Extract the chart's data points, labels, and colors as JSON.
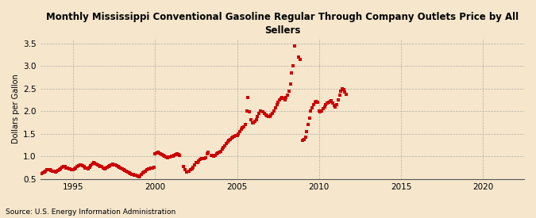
{
  "title": "Monthly Mississippi Conventional Gasoline Regular Through Company Outlets Price by All\nSellers",
  "ylabel": "Dollars per Gallon",
  "source": "Source: U.S. Energy Information Administration",
  "background_color": "#f5e6cc",
  "line_color": "#cc0000",
  "marker": "s",
  "markersize": 2.2,
  "xlim": [
    1993.0,
    2022.5
  ],
  "ylim": [
    0.5,
    3.6
  ],
  "yticks": [
    0.5,
    1.0,
    1.5,
    2.0,
    2.5,
    3.0,
    3.5
  ],
  "xticks": [
    1995,
    2000,
    2005,
    2010,
    2015,
    2020
  ],
  "early_dates": [
    1993.08,
    1993.17,
    1993.25,
    1993.33,
    1993.42,
    1993.5,
    1993.58,
    1993.67,
    1993.75,
    1993.83,
    1993.92,
    1994.0,
    1994.08,
    1994.17,
    1994.25,
    1994.33,
    1994.42,
    1994.5,
    1994.58,
    1994.67,
    1994.75,
    1994.83,
    1994.92,
    1995.0,
    1995.08,
    1995.17,
    1995.25,
    1995.33,
    1995.42,
    1995.5,
    1995.58,
    1995.67,
    1995.75,
    1995.83,
    1995.92,
    1996.0,
    1996.08,
    1996.17,
    1996.25,
    1996.33,
    1996.42,
    1996.5,
    1996.58,
    1996.67,
    1996.75,
    1996.83,
    1996.92,
    1997.0,
    1997.08,
    1997.17,
    1997.25,
    1997.33,
    1997.42,
    1997.5,
    1997.58,
    1997.67,
    1997.75,
    1997.83,
    1997.92,
    1998.0,
    1998.08,
    1998.17,
    1998.25,
    1998.33,
    1998.42,
    1998.5,
    1998.58,
    1998.67,
    1998.75,
    1998.83,
    1998.92,
    1999.0,
    1999.08,
    1999.17,
    1999.25,
    1999.33,
    1999.42,
    1999.5,
    1999.58,
    1999.67,
    1999.75,
    1999.83,
    1999.92
  ],
  "early_values": [
    0.62,
    0.63,
    0.65,
    0.68,
    0.7,
    0.71,
    0.7,
    0.69,
    0.68,
    0.67,
    0.66,
    0.67,
    0.69,
    0.71,
    0.73,
    0.76,
    0.78,
    0.77,
    0.75,
    0.74,
    0.73,
    0.72,
    0.7,
    0.71,
    0.73,
    0.75,
    0.78,
    0.8,
    0.82,
    0.81,
    0.79,
    0.77,
    0.75,
    0.74,
    0.72,
    0.76,
    0.79,
    0.83,
    0.87,
    0.85,
    0.83,
    0.82,
    0.8,
    0.78,
    0.77,
    0.75,
    0.73,
    0.74,
    0.76,
    0.78,
    0.8,
    0.82,
    0.83,
    0.82,
    0.81,
    0.8,
    0.78,
    0.76,
    0.74,
    0.73,
    0.71,
    0.69,
    0.67,
    0.65,
    0.63,
    0.62,
    0.61,
    0.6,
    0.59,
    0.58,
    0.57,
    0.55,
    0.57,
    0.6,
    0.63,
    0.66,
    0.68,
    0.7,
    0.72,
    0.73,
    0.74,
    0.75,
    0.76
  ],
  "scatter_dates": [
    2000.0,
    2000.08,
    2000.17,
    2000.25,
    2000.33,
    2000.42,
    2000.5,
    2000.58,
    2000.67,
    2000.75,
    2000.83,
    2000.92,
    2001.0,
    2001.08,
    2001.17,
    2001.25,
    2001.33,
    2001.42,
    2001.5,
    2001.75,
    2001.83,
    2001.92,
    2002.08,
    2002.17,
    2002.25,
    2002.33,
    2002.42,
    2002.5,
    2002.58,
    2002.67,
    2002.75,
    2002.83,
    2002.92,
    2003.0,
    2003.08,
    2003.17,
    2003.25,
    2003.42,
    2003.5,
    2003.58,
    2003.67,
    2003.75,
    2003.83,
    2003.92,
    2004.0,
    2004.08,
    2004.17,
    2004.25,
    2004.33,
    2004.42,
    2004.5,
    2004.58,
    2004.67,
    2004.75,
    2004.83,
    2004.92,
    2005.0,
    2005.08,
    2005.17,
    2005.25,
    2005.33,
    2005.42,
    2005.5,
    2005.58,
    2005.67,
    2005.75,
    2005.83,
    2005.92,
    2006.0,
    2006.08,
    2006.17,
    2006.25,
    2006.33,
    2006.42,
    2006.58,
    2006.67,
    2006.75,
    2006.83,
    2006.92,
    2007.0,
    2007.08,
    2007.17,
    2007.25,
    2007.33,
    2007.42,
    2007.5,
    2007.58,
    2007.67,
    2007.75,
    2007.83,
    2007.92,
    2008.0,
    2008.08,
    2008.17,
    2008.25,
    2008.33,
    2008.42,
    2008.5,
    2008.75,
    2008.83,
    2009.0,
    2009.08,
    2009.17,
    2009.25,
    2009.33,
    2009.42,
    2009.5,
    2009.58,
    2009.67,
    2009.75,
    2009.83,
    2009.92,
    2010.0,
    2010.08,
    2010.17,
    2010.25,
    2010.33,
    2010.42,
    2010.5,
    2010.58,
    2010.67,
    2010.75,
    2010.83,
    2010.92,
    2011.0,
    2011.08,
    2011.17,
    2011.25,
    2011.33,
    2011.42,
    2011.5,
    2011.58,
    2011.67
  ],
  "scatter_values": [
    1.05,
    1.08,
    1.1,
    1.08,
    1.06,
    1.04,
    1.02,
    1.0,
    0.98,
    0.97,
    0.98,
    0.99,
    1.0,
    1.01,
    1.03,
    1.04,
    1.05,
    1.04,
    1.03,
    0.78,
    0.7,
    0.65,
    0.68,
    0.7,
    0.73,
    0.76,
    0.82,
    0.87,
    0.87,
    0.9,
    0.93,
    0.95,
    0.95,
    0.96,
    0.97,
    1.05,
    1.1,
    1.03,
    1.02,
    1.01,
    1.03,
    1.05,
    1.07,
    1.09,
    1.12,
    1.16,
    1.2,
    1.24,
    1.28,
    1.32,
    1.35,
    1.38,
    1.41,
    1.43,
    1.45,
    1.46,
    1.47,
    1.5,
    1.55,
    1.6,
    1.63,
    1.65,
    1.7,
    2.0,
    2.3,
    1.98,
    1.82,
    1.75,
    1.75,
    1.78,
    1.82,
    1.88,
    1.95,
    2.0,
    1.99,
    1.95,
    1.92,
    1.9,
    1.88,
    1.89,
    1.92,
    1.96,
    2.0,
    2.07,
    2.14,
    2.2,
    2.25,
    2.28,
    2.3,
    2.28,
    2.25,
    2.3,
    2.35,
    2.45,
    2.6,
    2.85,
    3.0,
    3.45,
    3.2,
    3.15,
    1.35,
    1.38,
    1.42,
    1.55,
    1.7,
    1.85,
    2.0,
    2.08,
    2.15,
    2.2,
    2.22,
    2.2,
    2.0,
    1.99,
    2.0,
    2.05,
    2.1,
    2.15,
    2.18,
    2.2,
    2.22,
    2.23,
    2.18,
    2.12,
    2.1,
    2.15,
    2.25,
    2.35,
    2.45,
    2.5,
    2.48,
    2.42,
    2.38
  ]
}
